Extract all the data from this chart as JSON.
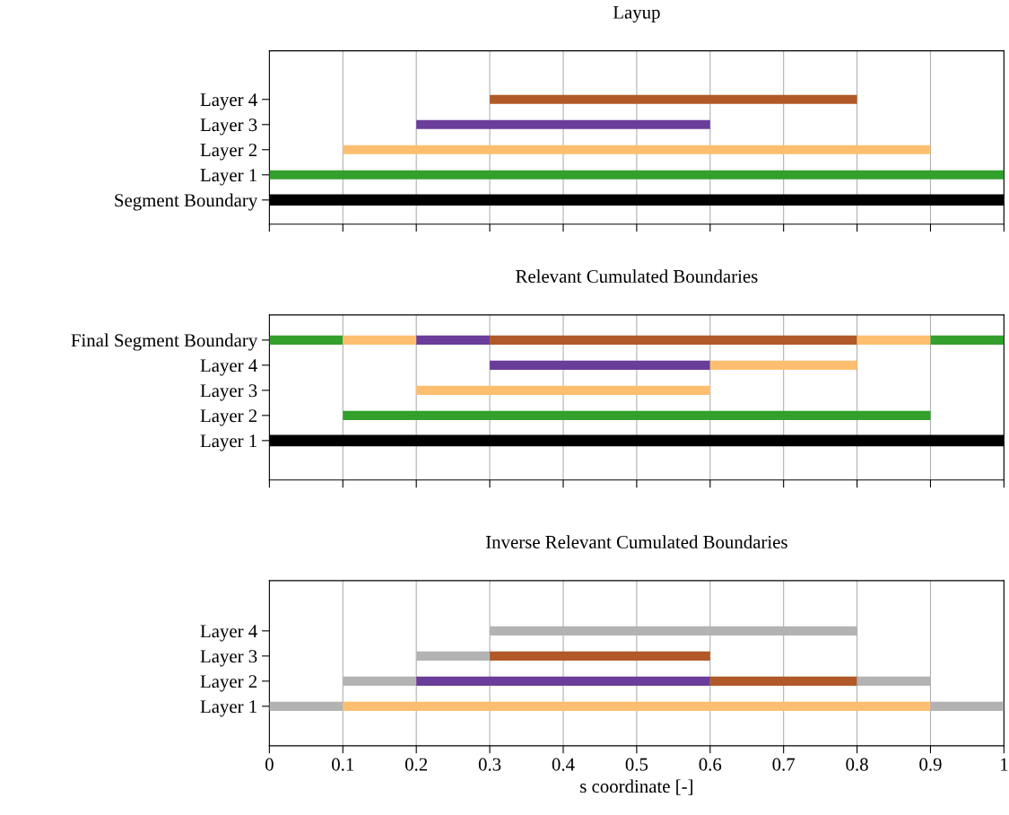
{
  "chart_data": [
    {
      "type": "bar",
      "orientation": "horizontal",
      "title": "Layup",
      "categories": [
        "Layer 4",
        "Layer 3",
        "Layer 2",
        "Layer 1",
        "Segment Boundary"
      ],
      "series": [
        {
          "base": [
            0.3,
            0.2,
            0.1,
            0,
            0
          ],
          "values": [
            0.5,
            0.4,
            0.8,
            1,
            1
          ],
          "colors": [
            "#b15928",
            "#6a3d9a",
            "#fdbf6f",
            "#33a02c",
            "#000000"
          ]
        }
      ],
      "xlim": [
        0,
        1
      ],
      "xticks": [
        0,
        0.1,
        0.2,
        0.3,
        0.4,
        0.5,
        0.6,
        0.7,
        0.8,
        0.9,
        1
      ],
      "tick_labels": "y",
      "grid": "x"
    },
    {
      "type": "bar",
      "orientation": "horizontal",
      "title": "Relevant Cumulated Boundaries",
      "categories": [
        "Final Segment Boundary",
        "Layer 4",
        "Layer 3",
        "Layer 2",
        "Layer 1"
      ],
      "series": [
        {
          "base": [
            0,
            0.3,
            0.2,
            0.1,
            0
          ],
          "values": [
            0.1,
            0.3,
            0.4,
            0.8,
            1
          ],
          "colors": [
            "#33a02c",
            "#6a3d9a",
            "#fdbf6f",
            "#33a02c",
            "#000000"
          ]
        },
        {
          "base": [
            0.1,
            0.6,
            null,
            null,
            null
          ],
          "values": [
            0.1,
            0.2,
            null,
            null,
            null
          ],
          "colors": [
            "#fdbf6f",
            "#fdbf6f",
            null,
            null,
            null
          ]
        },
        {
          "base": [
            0.2,
            null,
            null,
            null,
            null
          ],
          "values": [
            0.1,
            null,
            null,
            null,
            null
          ],
          "colors": [
            "#6a3d9a",
            null,
            null,
            null,
            null
          ]
        },
        {
          "base": [
            0.3,
            null,
            null,
            null,
            null
          ],
          "values": [
            0.5,
            null,
            null,
            null,
            null
          ],
          "colors": [
            "#b15928",
            null,
            null,
            null,
            null
          ]
        },
        {
          "base": [
            0.8,
            null,
            null,
            null,
            null
          ],
          "values": [
            0.1,
            null,
            null,
            null,
            null
          ],
          "colors": [
            "#fdbf6f",
            null,
            null,
            null,
            null
          ]
        },
        {
          "base": [
            0.9,
            null,
            null,
            null,
            null
          ],
          "values": [
            0.1,
            null,
            null,
            null,
            null
          ],
          "colors": [
            "#33a02c",
            null,
            null,
            null,
            null
          ]
        }
      ],
      "xlim": [
        0,
        1
      ],
      "xticks": [
        0,
        0.1,
        0.2,
        0.3,
        0.4,
        0.5,
        0.6,
        0.7,
        0.8,
        0.9,
        1
      ],
      "tick_labels": "y",
      "grid": "x"
    },
    {
      "type": "bar",
      "orientation": "horizontal",
      "title": "Inverse Relevant Cumulated Boundaries",
      "xlabel": "s coordinate [-]",
      "categories": [
        "Layer 4",
        "Layer 3",
        "Layer 2",
        "Layer 1"
      ],
      "series": [
        {
          "base": [
            0.3,
            0.2,
            0.1,
            0
          ],
          "values": [
            0.5,
            0.1,
            0.1,
            0.1
          ],
          "colors": [
            "#b3b3b3",
            "#b3b3b3",
            "#b3b3b3",
            "#b3b3b3"
          ]
        },
        {
          "base": [
            null,
            0.3,
            0.2,
            0.1
          ],
          "values": [
            null,
            0.3,
            0.4,
            0.8
          ],
          "colors": [
            null,
            "#b15928",
            "#6a3d9a",
            "#fdbf6f"
          ]
        },
        {
          "base": [
            null,
            null,
            0.6,
            0.9
          ],
          "values": [
            null,
            null,
            0.2,
            0.1
          ],
          "colors": [
            null,
            null,
            "#b15928",
            "#b3b3b3"
          ]
        },
        {
          "base": [
            null,
            null,
            0.8,
            null
          ],
          "values": [
            null,
            null,
            0.1,
            null
          ],
          "colors": [
            null,
            null,
            "#b3b3b3",
            null
          ]
        }
      ],
      "xlim": [
        0,
        1
      ],
      "xticks": [
        0,
        0.1,
        0.2,
        0.3,
        0.4,
        0.5,
        0.6,
        0.7,
        0.8,
        0.9,
        1
      ],
      "grid": "x"
    }
  ]
}
